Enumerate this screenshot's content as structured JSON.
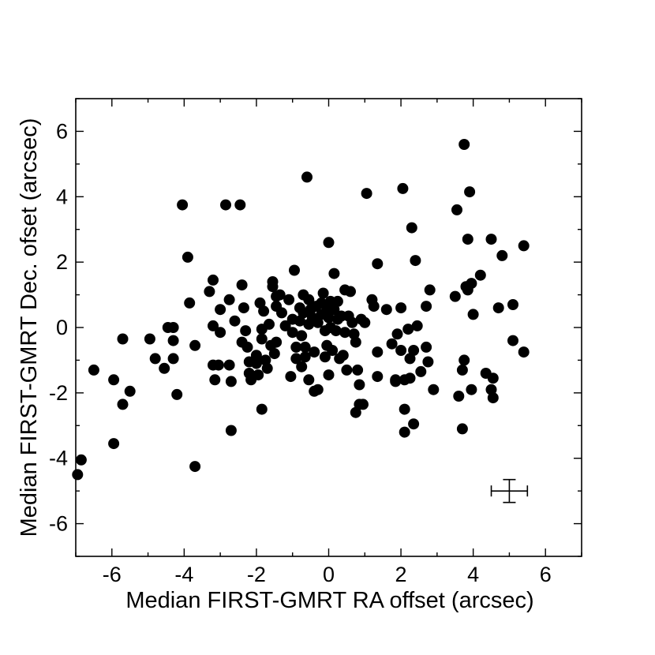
{
  "chart_data": {
    "type": "scatter",
    "title": "",
    "xlabel": "Median FIRST-GMRT RA offset (arcsec)",
    "ylabel": "Median FIRST-GMRT Dec. ofset (arcsec)",
    "xlim": [
      -7,
      7
    ],
    "ylim": [
      -7,
      7
    ],
    "x_ticks": [
      -6,
      -4,
      -2,
      0,
      2,
      4,
      6
    ],
    "y_ticks": [
      -6,
      -4,
      -2,
      0,
      2,
      4,
      6
    ],
    "x_tick_labels": [
      "-6",
      "-4",
      "-2",
      "0",
      "2",
      "4",
      "6"
    ],
    "y_tick_labels": [
      "-6",
      "-4",
      "-2",
      "0",
      "2",
      "4",
      "6"
    ],
    "grid": false,
    "marker": "filled-circle",
    "marker_color": "#000000",
    "error_bar": {
      "x": 5.0,
      "y": -5.0,
      "xerr": 0.5,
      "yerr": 0.35
    },
    "points": [
      [
        -6.95,
        -4.5
      ],
      [
        -6.85,
        -4.05
      ],
      [
        -6.5,
        -1.3
      ],
      [
        -5.95,
        -1.6
      ],
      [
        -5.95,
        -3.55
      ],
      [
        -5.7,
        -0.35
      ],
      [
        -5.7,
        -2.35
      ],
      [
        -5.5,
        -1.95
      ],
      [
        -4.95,
        -0.35
      ],
      [
        -4.8,
        -0.95
      ],
      [
        -4.55,
        -1.25
      ],
      [
        -4.45,
        0.0
      ],
      [
        -4.3,
        0.0
      ],
      [
        -4.3,
        -0.4
      ],
      [
        -4.3,
        -0.95
      ],
      [
        -4.2,
        -2.05
      ],
      [
        -4.05,
        3.75
      ],
      [
        -3.9,
        2.15
      ],
      [
        -3.85,
        0.75
      ],
      [
        -3.7,
        -0.55
      ],
      [
        -3.7,
        -4.25
      ],
      [
        -3.3,
        1.1
      ],
      [
        -3.2,
        1.45
      ],
      [
        -3.2,
        0.05
      ],
      [
        -3.2,
        -1.15
      ],
      [
        -3.15,
        -1.6
      ],
      [
        -3.05,
        -1.15
      ],
      [
        -3.0,
        0.55
      ],
      [
        -3.0,
        -0.15
      ],
      [
        -2.85,
        3.75
      ],
      [
        -2.75,
        0.85
      ],
      [
        -2.75,
        -1.15
      ],
      [
        -2.7,
        -1.65
      ],
      [
        -2.7,
        -3.15
      ],
      [
        -2.6,
        0.2
      ],
      [
        -2.45,
        3.75
      ],
      [
        -2.4,
        1.3
      ],
      [
        -2.35,
        0.6
      ],
      [
        -2.4,
        -0.45
      ],
      [
        -2.3,
        -0.1
      ],
      [
        -2.25,
        -0.6
      ],
      [
        -2.2,
        -1.05
      ],
      [
        -2.2,
        -1.4
      ],
      [
        -2.15,
        -1.6
      ],
      [
        -2.0,
        -0.85
      ],
      [
        -2.0,
        -1.1
      ],
      [
        -1.95,
        -1.45
      ],
      [
        -1.9,
        0.75
      ],
      [
        -1.85,
        -0.05
      ],
      [
        -1.85,
        -0.35
      ],
      [
        -1.85,
        -2.5
      ],
      [
        -1.8,
        0.5
      ],
      [
        -1.75,
        -1.0
      ],
      [
        -1.7,
        -1.25
      ],
      [
        -1.65,
        0.1
      ],
      [
        -1.6,
        -0.55
      ],
      [
        -1.55,
        1.4
      ],
      [
        -1.55,
        1.25
      ],
      [
        -1.5,
        -0.8
      ],
      [
        -1.45,
        0.95
      ],
      [
        -1.45,
        0.65
      ],
      [
        -1.45,
        -0.45
      ],
      [
        -1.35,
        1.0
      ],
      [
        -1.3,
        0.45
      ],
      [
        -1.2,
        0.05
      ],
      [
        -1.1,
        0.85
      ],
      [
        -1.05,
        -1.5
      ],
      [
        -1.0,
        0.25
      ],
      [
        -1.0,
        -0.15
      ],
      [
        -0.95,
        1.75
      ],
      [
        -0.9,
        -0.6
      ],
      [
        -0.9,
        -0.95
      ],
      [
        -0.8,
        0.6
      ],
      [
        -0.8,
        0.2
      ],
      [
        -0.75,
        -0.25
      ],
      [
        -0.75,
        -1.2
      ],
      [
        -0.7,
        1.0
      ],
      [
        -0.7,
        0.45
      ],
      [
        -0.65,
        -0.6
      ],
      [
        -0.65,
        -0.9
      ],
      [
        -0.6,
        4.6
      ],
      [
        -0.55,
        0.85
      ],
      [
        -0.55,
        0.1
      ],
      [
        -0.55,
        -1.6
      ],
      [
        -0.5,
        0.55
      ],
      [
        -0.45,
        0.3
      ],
      [
        -0.4,
        -0.75
      ],
      [
        -0.4,
        -1.95
      ],
      [
        -0.35,
        0.65
      ],
      [
        -0.3,
        0.15
      ],
      [
        -0.3,
        -1.9
      ],
      [
        -0.2,
        0.75
      ],
      [
        -0.2,
        0.4
      ],
      [
        -0.15,
        1.05
      ],
      [
        -0.1,
        -0.1
      ],
      [
        -0.1,
        -0.9
      ],
      [
        -0.05,
        0.6
      ],
      [
        -0.05,
        -0.55
      ],
      [
        0.0,
        0.3
      ],
      [
        0.0,
        2.6
      ],
      [
        0.0,
        -1.45
      ],
      [
        0.05,
        0.8
      ],
      [
        0.05,
        0.0
      ],
      [
        0.1,
        -0.7
      ],
      [
        0.15,
        1.65
      ],
      [
        0.15,
        0.55
      ],
      [
        0.2,
        -0.1
      ],
      [
        0.25,
        0.25
      ],
      [
        0.25,
        0.8
      ],
      [
        0.3,
        -0.95
      ],
      [
        0.35,
        0.35
      ],
      [
        0.4,
        -0.85
      ],
      [
        0.45,
        1.15
      ],
      [
        0.45,
        -0.15
      ],
      [
        0.5,
        -1.3
      ],
      [
        0.55,
        0.35
      ],
      [
        0.6,
        1.1
      ],
      [
        0.65,
        0.15
      ],
      [
        0.7,
        -0.2
      ],
      [
        0.75,
        -2.6
      ],
      [
        0.75,
        -0.45
      ],
      [
        0.8,
        -1.3
      ],
      [
        0.85,
        -1.75
      ],
      [
        0.85,
        -2.35
      ],
      [
        0.9,
        0.25
      ],
      [
        0.95,
        -2.35
      ],
      [
        1.0,
        0.15
      ],
      [
        1.05,
        4.1
      ],
      [
        1.2,
        0.85
      ],
      [
        1.25,
        0.65
      ],
      [
        1.35,
        1.95
      ],
      [
        1.35,
        -0.75
      ],
      [
        1.35,
        -1.5
      ],
      [
        1.6,
        0.55
      ],
      [
        1.75,
        -0.5
      ],
      [
        1.85,
        -1.6
      ],
      [
        1.85,
        -1.65
      ],
      [
        1.9,
        -0.2
      ],
      [
        2.0,
        0.6
      ],
      [
        2.0,
        -0.7
      ],
      [
        2.05,
        4.25
      ],
      [
        2.1,
        -1.6
      ],
      [
        2.1,
        -2.5
      ],
      [
        2.1,
        -3.2
      ],
      [
        2.2,
        -0.05
      ],
      [
        2.25,
        -1.55
      ],
      [
        2.25,
        -0.95
      ],
      [
        2.3,
        3.05
      ],
      [
        2.35,
        -0.7
      ],
      [
        2.35,
        -2.95
      ],
      [
        2.4,
        2.05
      ],
      [
        2.45,
        0.05
      ],
      [
        2.55,
        -1.35
      ],
      [
        2.7,
        0.65
      ],
      [
        2.7,
        -0.6
      ],
      [
        2.75,
        -1.05
      ],
      [
        2.8,
        1.15
      ],
      [
        2.9,
        -1.9
      ],
      [
        3.5,
        0.95
      ],
      [
        3.55,
        3.6
      ],
      [
        3.6,
        -2.1
      ],
      [
        3.7,
        -3.1
      ],
      [
        3.7,
        -1.3
      ],
      [
        3.75,
        5.6
      ],
      [
        3.75,
        -1.0
      ],
      [
        3.8,
        1.25
      ],
      [
        3.85,
        2.7
      ],
      [
        3.85,
        1.15
      ],
      [
        3.9,
        4.15
      ],
      [
        3.95,
        1.35
      ],
      [
        3.95,
        -1.9
      ],
      [
        4.0,
        0.4
      ],
      [
        4.2,
        1.6
      ],
      [
        4.35,
        -1.4
      ],
      [
        4.5,
        2.7
      ],
      [
        4.5,
        -1.9
      ],
      [
        4.55,
        -1.55
      ],
      [
        4.55,
        -2.15
      ],
      [
        4.7,
        0.6
      ],
      [
        4.8,
        2.2
      ],
      [
        5.1,
        0.7
      ],
      [
        5.1,
        -0.4
      ],
      [
        5.4,
        2.5
      ],
      [
        5.4,
        -0.75
      ]
    ]
  }
}
